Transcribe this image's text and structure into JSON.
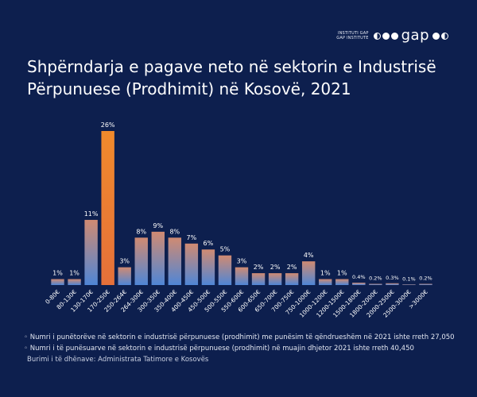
{
  "logo": {
    "line1": "INSTITUTI GAP",
    "line2": "GAP INSTITUTE",
    "wordmark": "gap",
    "icon": "gap-logo-icon"
  },
  "title": "Shpërndarja e pagave neto në sektorin e Industrisë Përpunuese (Prodhimit) në Kosovë, 2021",
  "notes": [
    "Numri i punëtorëve në sektorin e industrisë përpunuese (prodhimit) me punësim të qëndrueshëm në 2021 ishte rreth 27,050",
    "Numri i të punësuarve në sektorin e industrisë përpunuese (prodhimit) në muajin dhjetor 2021 ishte rreth 40,450"
  ],
  "source": "Burimi i të dhënave: Administrata Tatimore e Kosovës",
  "colors": {
    "background": "#0d1f4e",
    "bar_top": "#d08a72",
    "bar_bottom": "#4f86d6",
    "highlight_top": "#f08a2c",
    "highlight_bottom": "#e5703a"
  },
  "chart_data": {
    "type": "bar",
    "categories": [
      "0-80€",
      "80-130€",
      "130-170€",
      "170-250€",
      "250-264€",
      "264-300€",
      "300-350€",
      "350-400€",
      "400-450€",
      "450-500€",
      "500-550€",
      "550-600€",
      "600-650€",
      "650-700€",
      "700-750€",
      "750-1000€",
      "1000-1200€",
      "1200-1500€",
      "1500-1800€",
      "1800-2000€",
      "2000-2500€",
      "2500-3000€",
      ">3000€"
    ],
    "values": [
      1,
      1,
      11,
      26,
      3,
      8,
      9,
      8,
      7,
      6,
      5,
      3,
      2,
      2,
      2,
      4,
      1,
      1,
      0.4,
      0.2,
      0.3,
      0.1,
      0.2
    ],
    "labels": [
      "1%",
      "1%",
      "11%",
      "26%",
      "3%",
      "8%",
      "9%",
      "8%",
      "7%",
      "6%",
      "5%",
      "3%",
      "2%",
      "2%",
      "2%",
      "4%",
      "1%",
      "1%",
      "0.4%",
      "0.2%",
      "0.3%",
      "0.1%",
      "0.2%"
    ],
    "highlight_index": 3,
    "ylim": [
      0,
      26
    ],
    "grid": false
  }
}
